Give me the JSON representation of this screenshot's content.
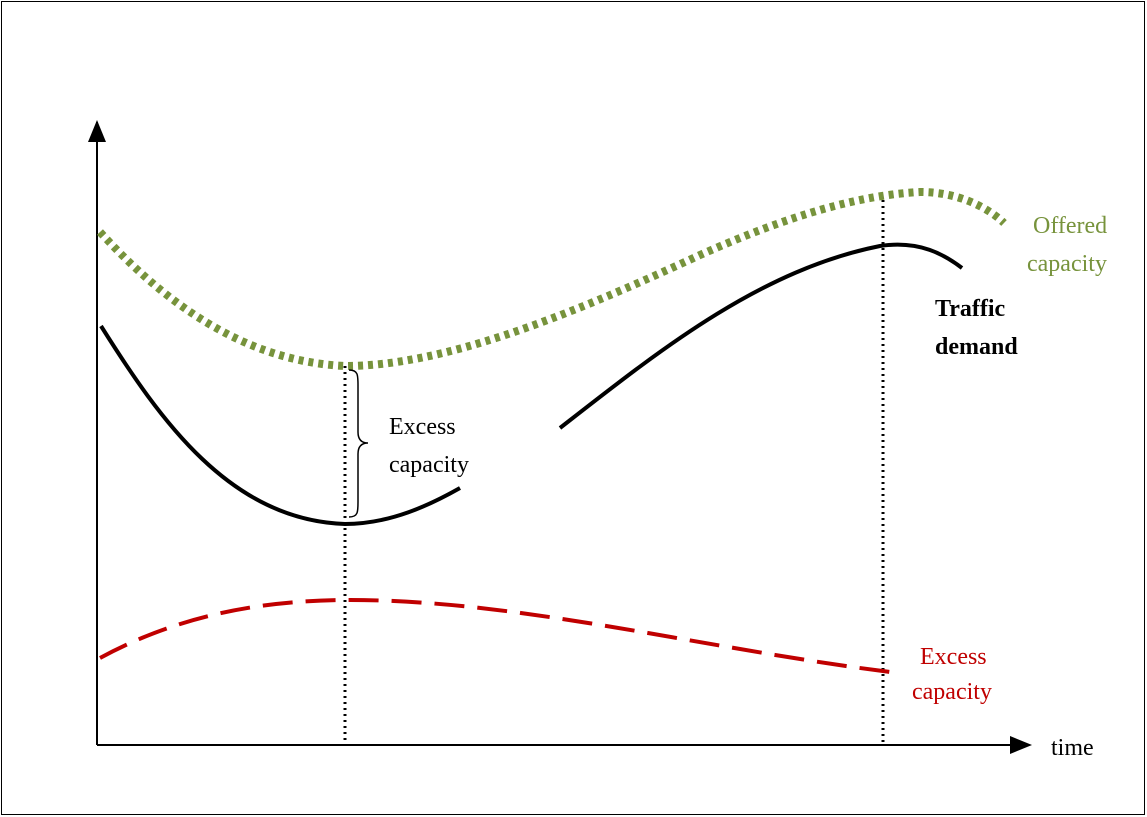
{
  "labels": {
    "offered_line1": "Offered",
    "offered_line2": "capacity",
    "demand_line1": "Traffic",
    "demand_line2": "demand",
    "bracket_line1": "Excess",
    "bracket_line2": "capacity",
    "excess_line1": "Excess",
    "excess_line2": "capacity",
    "x_axis": "time"
  },
  "colors": {
    "offered": "#77933c",
    "demand": "#000000",
    "excess": "#c00000",
    "axes": "#000000"
  }
}
